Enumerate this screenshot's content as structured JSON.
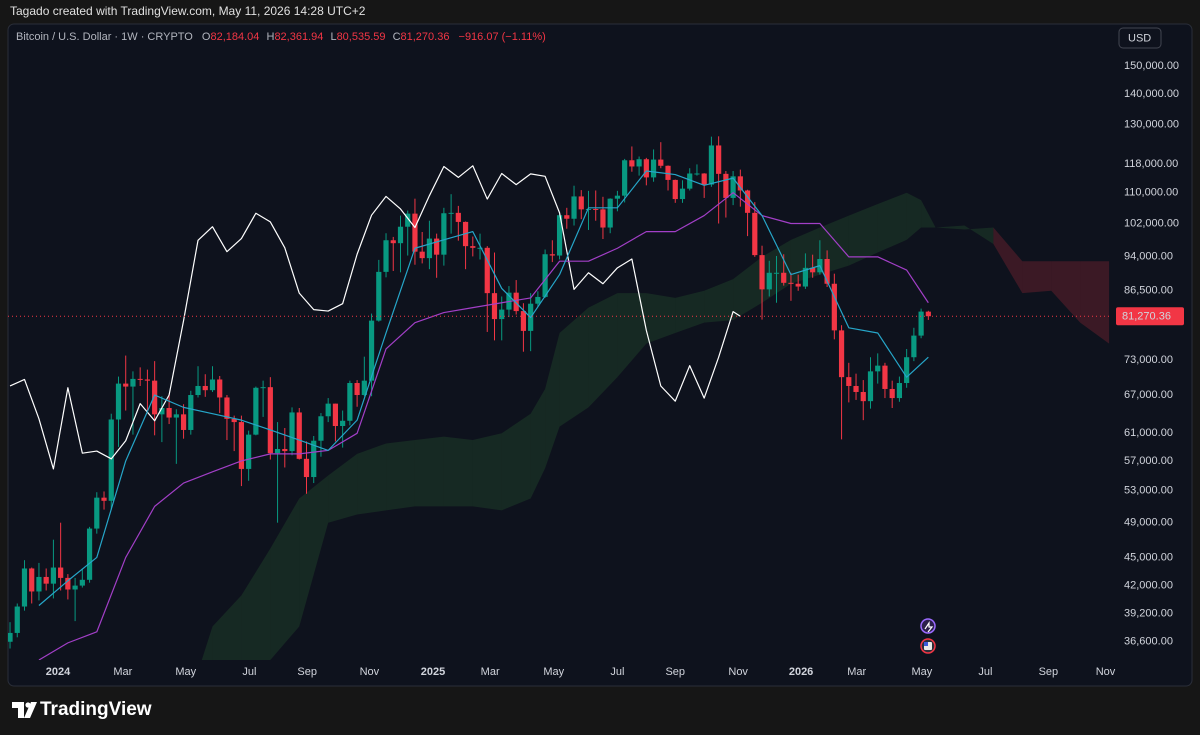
{
  "chart_data": {
    "type": "candlestick",
    "caption": "Tagado created with TradingView.com, May 11, 2026 14:28 UTC+2",
    "title": "Bitcoin / U.S. Dollar · 1W · CRYPTO",
    "ohlc": [
      {
        "key": "O",
        "value": "82,184.04"
      },
      {
        "key": "H",
        "value": "82,361.94"
      },
      {
        "key": "L",
        "value": "80,535.59"
      },
      {
        "key": "C",
        "value": "81,270.36"
      }
    ],
    "change": "−916.07 (−1.11%)",
    "currency": "USD",
    "last_price_label": "81,270.36",
    "brand": "TradingView",
    "y_scale": "log",
    "grid": false,
    "ylim": [
      35000,
      165500
    ],
    "yticks": [
      {
        "value": 150000,
        "label": "150,000.00"
      },
      {
        "value": 140000,
        "label": "140,000.00"
      },
      {
        "value": 130000,
        "label": "130,000.00"
      },
      {
        "value": 118000,
        "label": "118,000.00"
      },
      {
        "value": 110000,
        "label": "110,000.00"
      },
      {
        "value": 102000,
        "label": "102,000.00"
      },
      {
        "value": 94000,
        "label": "94,000.00"
      },
      {
        "value": 86500,
        "label": "86,500.00"
      },
      {
        "value": 73000,
        "label": "73,000.00"
      },
      {
        "value": 67000,
        "label": "67,000.00"
      },
      {
        "value": 61000,
        "label": "61,000.00"
      },
      {
        "value": 57000,
        "label": "57,000.00"
      },
      {
        "value": 53000,
        "label": "53,000.00"
      },
      {
        "value": 49000,
        "label": "49,000.00"
      },
      {
        "value": 45000,
        "label": "45,000.00"
      },
      {
        "value": 42000,
        "label": "42,000.00"
      },
      {
        "value": 39200,
        "label": "39,200.00"
      },
      {
        "value": 36600,
        "label": "36,600.00"
      }
    ],
    "xlim": [
      -0.28,
      152.4
    ],
    "xticks": [
      {
        "value": 6.64,
        "label": "2024"
      },
      {
        "value": 15.6,
        "label": "Mar"
      },
      {
        "value": 24.3,
        "label": "May"
      },
      {
        "value": 33.1,
        "label": "Jul"
      },
      {
        "value": 41.1,
        "label": "Sep"
      },
      {
        "value": 49.7,
        "label": "Nov"
      },
      {
        "value": 58.5,
        "label": "2025"
      },
      {
        "value": 66.4,
        "label": "Mar"
      },
      {
        "value": 75.2,
        "label": "May"
      },
      {
        "value": 84.0,
        "label": "Jul"
      },
      {
        "value": 92.0,
        "label": "Sep"
      },
      {
        "value": 100.7,
        "label": "Nov"
      },
      {
        "value": 109.4,
        "label": "2026"
      },
      {
        "value": 117.1,
        "label": "Mar"
      },
      {
        "value": 126.1,
        "label": "May"
      },
      {
        "value": 134.9,
        "label": "Jul"
      },
      {
        "value": 143.6,
        "label": "Sep"
      },
      {
        "value": 151.5,
        "label": "Nov"
      }
    ],
    "candles": {
      "up_color": "#089981",
      "down_color": "#f23645",
      "open": [
        36600,
        37400,
        39900,
        43800,
        41400,
        42900,
        42200,
        43900,
        42800,
        41600,
        42000,
        42600,
        48300,
        52100,
        51700,
        63100,
        68900,
        68400,
        69700,
        69600,
        69400,
        63900,
        64900,
        63400,
        63900,
        61500,
        67000,
        68500,
        67800,
        69600,
        66600,
        63200,
        62700,
        55900,
        60800,
        68200,
        68300,
        58100,
        58700,
        58400,
        64200,
        57300,
        54800,
        59900,
        63600,
        65600,
        62100,
        62900,
        69000,
        67000,
        69400,
        80400,
        90600,
        97900,
        97200,
        101200,
        104500,
        95200,
        93700,
        98300,
        94500,
        104600,
        104700,
        102400,
        96500,
        96100,
        96100,
        86000,
        80700,
        82600,
        86100,
        82300,
        78400,
        83800,
        85200,
        94600,
        94300,
        104100,
        103200,
        109000,
        105600,
        105700,
        105600,
        101000,
        108400,
        109200,
        119100,
        117300,
        119400,
        114200,
        119300,
        117500,
        113500,
        108300,
        111100,
        115300,
        115300,
        112200,
        123500,
        115200,
        108600,
        114500,
        110600,
        104700,
        94400,
        86800,
        90400,
        90400,
        88200,
        88000,
        87400,
        91500,
        90500,
        93500,
        88000,
        78500,
        70000,
        68500,
        67500,
        66000,
        71000,
        72000,
        68000,
        66500,
        69000,
        73500,
        77500,
        82184.04
      ],
      "high": [
        38400,
        40200,
        44700,
        43900,
        44400,
        43800,
        47000,
        49000,
        43200,
        42800,
        43800,
        48500,
        52800,
        52900,
        64000,
        70100,
        73800,
        71000,
        71700,
        71300,
        72800,
        66800,
        67200,
        64700,
        65500,
        67700,
        71900,
        70500,
        71900,
        70200,
        67000,
        63700,
        63700,
        61400,
        68400,
        69400,
        70000,
        62700,
        61800,
        65000,
        64900,
        59800,
        60600,
        64100,
        66500,
        65600,
        64500,
        69400,
        69500,
        73600,
        81800,
        93300,
        99600,
        98700,
        104000,
        105300,
        108400,
        99900,
        102700,
        99500,
        106000,
        109600,
        106500,
        102500,
        98800,
        99500,
        96500,
        95000,
        85300,
        87500,
        88800,
        83900,
        86000,
        86400,
        95700,
        97900,
        104900,
        106000,
        111900,
        110700,
        110500,
        110600,
        108900,
        108500,
        110500,
        119500,
        123200,
        120200,
        119800,
        122300,
        124500,
        117600,
        113600,
        113400,
        116800,
        117900,
        115400,
        126200,
        126300,
        116000,
        116000,
        116400,
        110800,
        107500,
        96600,
        93100,
        94200,
        94600,
        90400,
        90000,
        94800,
        94500,
        97900,
        95500,
        90200,
        79500,
        72500,
        70600,
        69500,
        73500,
        74200,
        72500,
        69400,
        70100,
        75000,
        79000,
        82800,
        82361.94
      ],
      "low": [
        36000,
        37000,
        39500,
        40200,
        40500,
        41500,
        40700,
        41500,
        40600,
        38500,
        41800,
        42300,
        47700,
        50600,
        50600,
        59000,
        64500,
        60800,
        68500,
        64500,
        60700,
        59700,
        62400,
        56600,
        60200,
        60800,
        66600,
        66700,
        67500,
        64100,
        60000,
        58400,
        53600,
        54300,
        60700,
        63500,
        57200,
        49000,
        56100,
        57800,
        57200,
        52600,
        54000,
        57600,
        62700,
        59800,
        58900,
        62200,
        65100,
        66800,
        66800,
        80200,
        89400,
        90800,
        90500,
        94300,
        92200,
        92500,
        91200,
        89300,
        92000,
        99500,
        97800,
        91200,
        94100,
        93400,
        78200,
        76600,
        76600,
        81100,
        81600,
        74500,
        74600,
        83100,
        85000,
        92800,
        93400,
        100700,
        101500,
        103100,
        100400,
        102700,
        98200,
        99600,
        105100,
        107400,
        115800,
        114700,
        112000,
        113000,
        116800,
        110600,
        107300,
        107300,
        110600,
        114700,
        108600,
        111600,
        102000,
        103500,
        106700,
        106300,
        98900,
        94000,
        80600,
        85300,
        84000,
        87600,
        84400,
        86500,
        86900,
        89300,
        90000,
        87300,
        76800,
        60100,
        65800,
        66200,
        63000,
        64800,
        68900,
        66500,
        64900,
        65900,
        68200,
        72800,
        77000,
        80535.59
      ],
      "close": [
        37400,
        39900,
        43800,
        41400,
        42900,
        42200,
        43900,
        42800,
        41600,
        42000,
        42600,
        48300,
        52100,
        51700,
        63100,
        68900,
        68400,
        69700,
        69600,
        69400,
        63900,
        64900,
        63400,
        63900,
        61500,
        67000,
        68500,
        67800,
        69600,
        66600,
        63200,
        62700,
        55900,
        60800,
        68200,
        68300,
        58100,
        58700,
        58400,
        64200,
        57300,
        54800,
        59900,
        63600,
        65600,
        62100,
        62900,
        69000,
        67000,
        69400,
        80400,
        90600,
        97900,
        97200,
        101200,
        104500,
        95200,
        93700,
        98300,
        94500,
        104600,
        104700,
        102400,
        96500,
        96100,
        96100,
        86000,
        80700,
        82600,
        86100,
        82300,
        78400,
        83800,
        85200,
        94600,
        94300,
        104100,
        103200,
        109000,
        105600,
        105700,
        105600,
        101000,
        108400,
        109200,
        119100,
        117300,
        119400,
        114200,
        119300,
        117500,
        113500,
        108300,
        111100,
        115300,
        115300,
        112200,
        123500,
        115200,
        108600,
        114500,
        110600,
        104700,
        94400,
        86800,
        90400,
        90400,
        88200,
        88000,
        87400,
        91500,
        90500,
        93500,
        88000,
        78500,
        70000,
        68500,
        67500,
        66000,
        71000,
        72000,
        68000,
        66500,
        69000,
        73500,
        77500,
        82200,
        81270.36
      ]
    },
    "cloud": {
      "up_color": "rgba(67,160,71,0.16)",
      "down_color": "rgba(242,54,69,0.2)",
      "x": [
        26,
        28,
        32,
        36,
        40,
        44,
        48,
        52,
        56,
        60,
        64,
        68,
        72,
        74,
        76,
        80,
        84,
        88,
        92,
        96,
        100,
        104,
        108,
        112,
        116,
        120,
        124,
        126,
        128,
        132,
        136,
        140,
        144,
        148,
        152
      ],
      "span_a": [
        34000,
        38000,
        41000,
        46000,
        52000,
        55000,
        58000,
        59500,
        60000,
        60500,
        60000,
        61000,
        64000,
        68000,
        78000,
        83000,
        86000,
        86000,
        85000,
        86500,
        89000,
        94000,
        98000,
        101000,
        104000,
        107000,
        110000,
        108000,
        101000,
        101500,
        97000,
        86000,
        86500,
        80000,
        76000
      ],
      "span_b": [
        33000,
        33500,
        34000,
        35000,
        38000,
        49000,
        50000,
        50500,
        51000,
        51000,
        51000,
        50500,
        52000,
        56000,
        62000,
        65000,
        70000,
        76000,
        78000,
        80000,
        80500,
        84000,
        88000,
        90000,
        92000,
        95000,
        98000,
        101000,
        101000,
        100500,
        101000,
        93000,
        93000,
        93000,
        93000
      ]
    },
    "lines": [
      {
        "color": "#ffffff",
        "x": [
          0,
          2,
          4,
          6,
          8,
          10,
          12,
          14,
          16,
          18,
          20,
          22,
          24,
          26,
          28,
          30,
          32,
          34,
          36,
          38,
          40,
          42,
          44,
          46,
          48,
          50,
          52,
          54,
          56,
          58,
          60,
          62,
          64,
          66,
          68,
          70,
          72,
          74,
          76,
          78,
          80,
          82,
          84,
          86,
          88,
          90,
          92,
          94,
          96,
          98,
          100,
          101
        ],
        "values": [
          68500,
          69600,
          63200,
          55900,
          68200,
          58100,
          58400,
          57300,
          59900,
          65600,
          62900,
          67000,
          80400,
          97900,
          101200,
          95200,
          98300,
          104600,
          102400,
          96100,
          86000,
          82600,
          82300,
          83800,
          94600,
          104100,
          109000,
          105700,
          101000,
          109200,
          117300,
          114200,
          117500,
          108300,
          115300,
          112200,
          115200,
          114500,
          104700,
          86800,
          90400,
          88000,
          91500,
          93500,
          78500,
          68500,
          66000,
          72000,
          66500,
          73500,
          82200,
          81270.36
        ]
      },
      {
        "color": "#a23fc7",
        "x": [
          4,
          8,
          12,
          16,
          20,
          24,
          28,
          32,
          36,
          40,
          44,
          48,
          52,
          56,
          60,
          64,
          68,
          72,
          76,
          80,
          84,
          88,
          92,
          96,
          100,
          104,
          108,
          112,
          116,
          120,
          124,
          127
        ],
        "values": [
          35000,
          36500,
          37500,
          45000,
          51000,
          54000,
          55500,
          57000,
          58000,
          58000,
          58500,
          61000,
          75000,
          80000,
          82000,
          83000,
          84000,
          85000,
          93000,
          93000,
          96000,
          100000,
          100000,
          104000,
          110000,
          104000,
          102000,
          102000,
          94000,
          94000,
          91000,
          84000
        ]
      },
      {
        "color": "#26a6c9",
        "x": [
          4,
          8,
          12,
          16,
          20,
          24,
          28,
          32,
          36,
          40,
          44,
          48,
          52,
          56,
          60,
          64,
          68,
          72,
          76,
          80,
          84,
          88,
          92,
          96,
          100,
          104,
          108,
          112,
          116,
          120,
          124,
          127
        ],
        "values": [
          40000,
          42500,
          45000,
          57000,
          67000,
          65000,
          64000,
          63000,
          61500,
          60000,
          58500,
          63000,
          78000,
          96000,
          98000,
          100000,
          87000,
          81000,
          90000,
          106000,
          106000,
          116000,
          115000,
          112000,
          114000,
          104000,
          90000,
          92000,
          79000,
          78000,
          70000,
          73500
        ]
      }
    ]
  }
}
